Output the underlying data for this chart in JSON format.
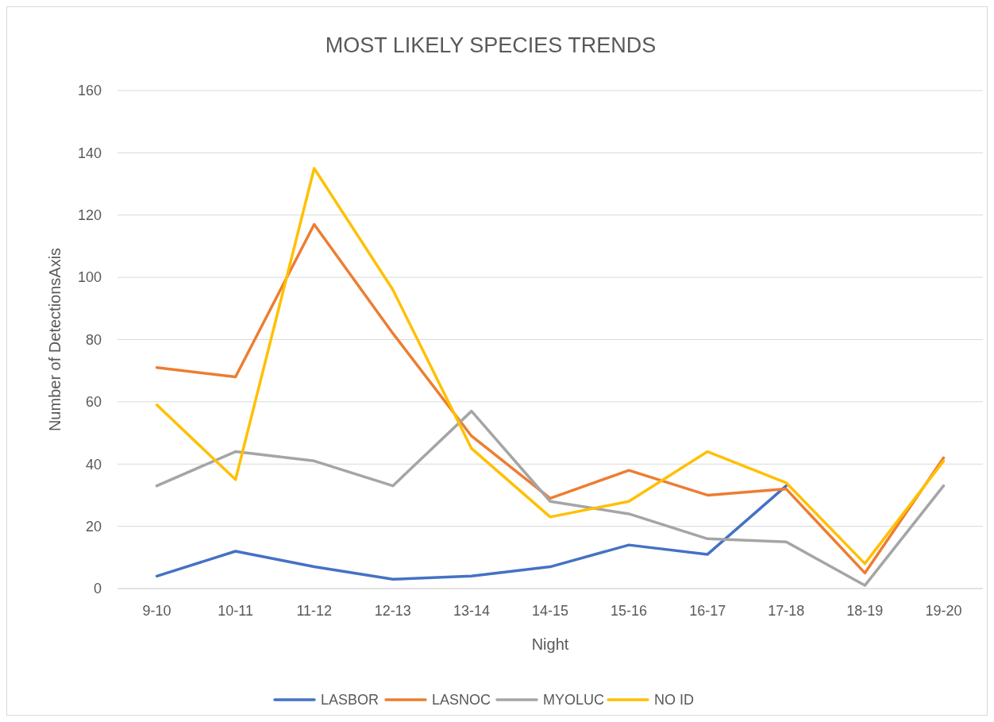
{
  "chart_data": {
    "type": "line",
    "title": "MOST LIKELY SPECIES TRENDS",
    "xlabel": "Night",
    "ylabel": "Number of DetectionsAxis",
    "categories": [
      "9-10",
      "10-11",
      "11-12",
      "12-13",
      "13-14",
      "14-15",
      "15-16",
      "16-17",
      "17-18",
      "18-19",
      "19-20"
    ],
    "series": [
      {
        "name": "LASBOR",
        "color": "#4472c4",
        "values": [
          4,
          12,
          7,
          3,
          4,
          7,
          14,
          11,
          33,
          null,
          null
        ]
      },
      {
        "name": "LASNOC",
        "color": "#ed7d31",
        "values": [
          71,
          68,
          117,
          82,
          49,
          29,
          38,
          30,
          32,
          5,
          42
        ]
      },
      {
        "name": "MYOLUC",
        "color": "#a5a5a5",
        "values": [
          33,
          44,
          41,
          33,
          57,
          28,
          24,
          16,
          15,
          1,
          33
        ]
      },
      {
        "name": "NO ID",
        "color": "#ffc000",
        "values": [
          59,
          35,
          135,
          96,
          45,
          23,
          28,
          44,
          34,
          8,
          41
        ]
      }
    ],
    "ylim": [
      0,
      160
    ],
    "yticks": [
      0,
      20,
      40,
      60,
      80,
      100,
      120,
      140,
      160
    ],
    "grid": "y",
    "legend": "bottom",
    "marker": "none",
    "line_style": "solid"
  }
}
